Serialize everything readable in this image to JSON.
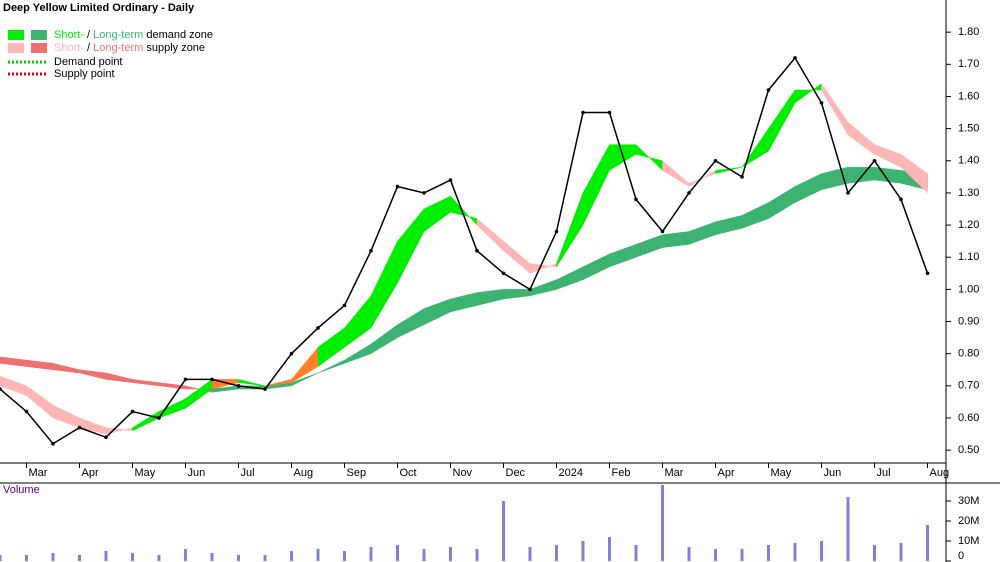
{
  "chart_data": {
    "type": "line",
    "title": "Deep Yellow Limited Ordinary - Daily",
    "legend": [
      {
        "short": "Short-",
        "sep": " / ",
        "long": "Long-term",
        "rest": " demand zone",
        "colors": [
          "#00ee00",
          "#3cb371"
        ]
      },
      {
        "short": "Short-",
        "sep": " / ",
        "long": "Long-term",
        "rest": " supply zone",
        "colors": [
          "#ffb6b6",
          "#f07070"
        ]
      },
      {
        "label": "Demand point",
        "color": "#00cc00"
      },
      {
        "label": "Supply point",
        "color": "#dd0000"
      }
    ],
    "categories": [
      null,
      "Mar",
      null,
      "Apr",
      null,
      "May",
      null,
      "Jun",
      null,
      "Jul",
      null,
      "Aug",
      null,
      "Sep",
      null,
      "Oct",
      null,
      "Nov",
      null,
      "Dec",
      null,
      "2024",
      null,
      "Feb",
      null,
      "Mar",
      null,
      "Apr",
      null,
      "May",
      null,
      "Jun",
      null,
      "Jul",
      null,
      "Aug"
    ],
    "values": [
      0.69,
      0.62,
      0.52,
      0.57,
      0.54,
      0.62,
      0.6,
      0.72,
      0.72,
      0.7,
      0.69,
      0.8,
      0.88,
      0.95,
      1.12,
      1.32,
      1.3,
      1.34,
      1.12,
      1.05,
      1.0,
      1.18,
      1.55,
      1.55,
      1.28,
      1.18,
      1.3,
      1.4,
      1.35,
      1.62,
      1.72,
      1.58,
      1.3,
      1.4,
      1.28,
      1.05
    ],
    "color": "#000000",
    "short_term_zone": {
      "fast": [
        0.7,
        0.67,
        0.6,
        0.57,
        0.55,
        0.57,
        0.62,
        0.66,
        0.72,
        0.72,
        0.7,
        0.72,
        0.82,
        0.88,
        0.98,
        1.15,
        1.25,
        1.29,
        1.2,
        1.12,
        1.05,
        1.08,
        1.3,
        1.45,
        1.45,
        1.37,
        1.32,
        1.37,
        1.38,
        1.5,
        1.62,
        1.62,
        1.48,
        1.42,
        1.38,
        1.3
      ],
      "slow": [
        0.73,
        0.7,
        0.64,
        0.6,
        0.57,
        0.56,
        0.6,
        0.63,
        0.69,
        0.71,
        0.7,
        0.71,
        0.76,
        0.82,
        0.88,
        1.02,
        1.18,
        1.24,
        1.22,
        1.15,
        1.08,
        1.07,
        1.2,
        1.37,
        1.42,
        1.4,
        1.33,
        1.36,
        1.38,
        1.43,
        1.58,
        1.64,
        1.52,
        1.45,
        1.42,
        1.36
      ]
    },
    "long_term_zone": {
      "fast": [
        0.77,
        0.76,
        0.75,
        0.74,
        0.72,
        0.71,
        0.7,
        0.69,
        0.69,
        0.7,
        0.7,
        0.71,
        0.74,
        0.78,
        0.83,
        0.89,
        0.94,
        0.97,
        0.99,
        1.0,
        1.0,
        1.03,
        1.07,
        1.11,
        1.14,
        1.17,
        1.18,
        1.21,
        1.23,
        1.27,
        1.32,
        1.36,
        1.38,
        1.38,
        1.37,
        1.36
      ],
      "slow": [
        0.79,
        0.78,
        0.77,
        0.75,
        0.74,
        0.72,
        0.71,
        0.7,
        0.68,
        0.69,
        0.69,
        0.7,
        0.74,
        0.77,
        0.8,
        0.85,
        0.89,
        0.93,
        0.95,
        0.97,
        0.98,
        1.0,
        1.03,
        1.07,
        1.1,
        1.13,
        1.14,
        1.17,
        1.19,
        1.22,
        1.27,
        1.31,
        1.33,
        1.34,
        1.33,
        1.31
      ]
    },
    "supply_color": "#ff7f2a",
    "ylim": [
      0.46,
      1.9
    ],
    "yticks": [
      {
        "value": 0.5,
        "label": "0.50"
      },
      {
        "value": 0.6,
        "label": "0.60"
      },
      {
        "value": 0.7,
        "label": "0.70"
      },
      {
        "value": 0.8,
        "label": "0.80"
      },
      {
        "value": 0.9,
        "label": "0.90"
      },
      {
        "value": 1.0,
        "label": "1.00"
      },
      {
        "value": 1.1,
        "label": "1.10"
      },
      {
        "value": 1.2,
        "label": "1.20"
      },
      {
        "value": 1.3,
        "label": "1.30"
      },
      {
        "value": 1.4,
        "label": "1.40"
      },
      {
        "value": 1.5,
        "label": "1.50"
      },
      {
        "value": 1.6,
        "label": "1.60"
      },
      {
        "value": 1.7,
        "label": "1.70"
      },
      {
        "value": 1.8,
        "label": "1.80"
      }
    ],
    "volume": {
      "label": "Volume",
      "color": "#8080d8",
      "values": [
        3000000,
        3000000,
        4000000,
        3000000,
        5000000,
        4000000,
        3000000,
        6000000,
        4000000,
        3000000,
        3000000,
        5000000,
        6000000,
        5000000,
        7000000,
        8000000,
        6000000,
        7000000,
        6000000,
        30000000,
        7000000,
        8000000,
        10000000,
        12000000,
        8000000,
        38000000,
        7000000,
        6000000,
        6000000,
        8000000,
        9000000,
        10000000,
        32000000,
        8000000,
        9000000,
        18000000
      ],
      "ylim": [
        0,
        38000000
      ],
      "yticks": [
        {
          "value": 0,
          "label": "0"
        },
        {
          "value": 10000000,
          "label": "10M"
        },
        {
          "value": 20000000,
          "label": "20M"
        },
        {
          "value": 30000000,
          "label": "30M"
        }
      ]
    }
  }
}
